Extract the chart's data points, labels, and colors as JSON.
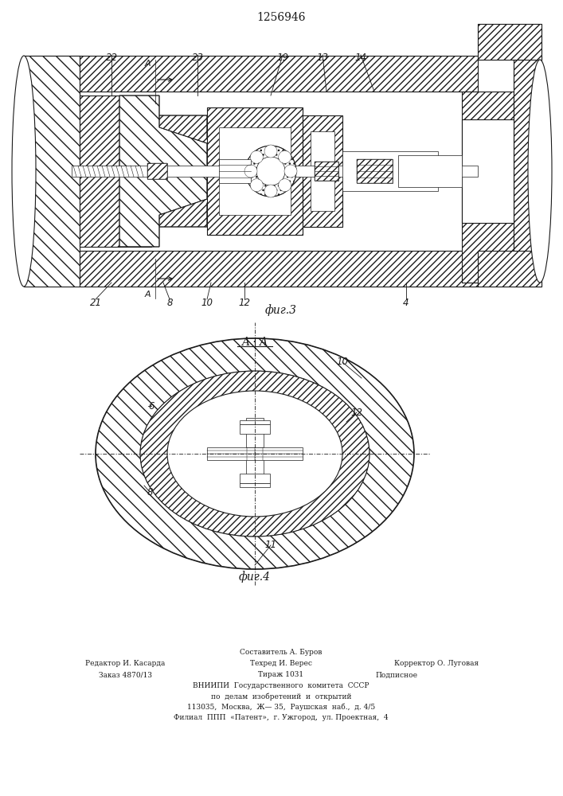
{
  "patent_number": "1256946",
  "fig3_label": "фиг.3",
  "fig4_label": "фиг.4",
  "section_label": "A · A",
  "footer_line1": "Составитель А. Буров",
  "footer_line2_left": "Редактор И. Касарда",
  "footer_line2_mid": "Техред И. Верес",
  "footer_line2_right": "Корректор О. Луговая",
  "footer_line3_left": "Заказ 4870/13",
  "footer_line3_mid": "Тираж 1031",
  "footer_line3_right": "Подписное",
  "footer_line4": "ВНИИПИ  Государственного  комитета  СССР",
  "footer_line5": "по  делам  изобретений  и  открытий",
  "footer_line6": "113035,  Москва,  Ж— 35,  Раушская  наб.,  д. 4/5",
  "footer_line7": "Филиал  ППП  «Патент»,  г. Ужгород,  ул. Проектная,  4",
  "bg_color": "#ffffff",
  "line_color": "#1a1a1a",
  "fig_width": 7.07,
  "fig_height": 10.0,
  "dpi": 100
}
